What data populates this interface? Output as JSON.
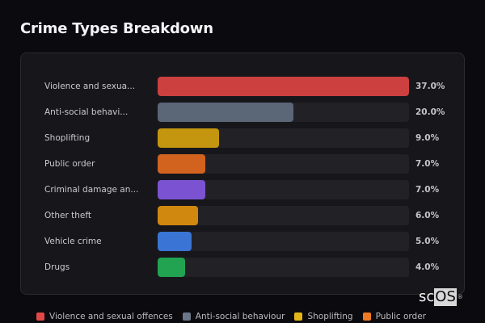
{
  "title": "Crime Types Breakdown",
  "chart_data": {
    "type": "bar",
    "orientation": "horizontal",
    "title": "Crime Types Breakdown",
    "categories": [
      "Violence and sexual offences",
      "Anti-social behaviour",
      "Shoplifting",
      "Public order",
      "Criminal damage and arson",
      "Other theft",
      "Vehicle crime",
      "Drugs"
    ],
    "display_labels": [
      "Violence and sexua...",
      "Anti-social behavi...",
      "Shoplifting",
      "Public order",
      "Criminal damage an...",
      "Other theft",
      "Vehicle crime",
      "Drugs"
    ],
    "values": [
      37.0,
      20.0,
      9.0,
      7.0,
      7.0,
      6.0,
      5.0,
      4.0
    ],
    "value_labels": [
      "37.0%",
      "20.0%",
      "9.0%",
      "7.0%",
      "7.0%",
      "6.0%",
      "5.0%",
      "4.0%"
    ],
    "colors": [
      "#cc4040",
      "#5b6677",
      "#c4960f",
      "#d2631e",
      "#7b52d1",
      "#d0880f",
      "#3a74d4",
      "#22a352"
    ],
    "xlabel": "",
    "ylabel": "",
    "unit": "%",
    "max": 37.0,
    "grid": false,
    "legend_position": "bottom"
  },
  "rows": [
    {
      "label": "Violence and sexua...",
      "pct": "37.0%",
      "value": 37.0,
      "color": "#cc4040"
    },
    {
      "label": "Anti-social behavi...",
      "pct": "20.0%",
      "value": 20.0,
      "color": "#5b6677"
    },
    {
      "label": "Shoplifting",
      "pct": "9.0%",
      "value": 9.0,
      "color": "#c4960f"
    },
    {
      "label": "Public order",
      "pct": "7.0%",
      "value": 7.0,
      "color": "#d2631e"
    },
    {
      "label": "Criminal damage an...",
      "pct": "7.0%",
      "value": 7.0,
      "color": "#7b52d1"
    },
    {
      "label": "Other theft",
      "pct": "6.0%",
      "value": 6.0,
      "color": "#d0880f"
    },
    {
      "label": "Vehicle crime",
      "pct": "5.0%",
      "value": 5.0,
      "color": "#3a74d4"
    },
    {
      "label": "Drugs",
      "pct": "4.0%",
      "value": 4.0,
      "color": "#22a352"
    }
  ],
  "legend": [
    {
      "label": "Violence and sexual offences",
      "color": "#e04848"
    },
    {
      "label": "Anti-social behaviour",
      "color": "#6b7688"
    },
    {
      "label": "Shoplifting",
      "color": "#e2b616"
    },
    {
      "label": "Public order",
      "color": "#f07a22"
    }
  ],
  "watermark": {
    "sc": "sc",
    "os": "OS",
    "reg": "®"
  }
}
